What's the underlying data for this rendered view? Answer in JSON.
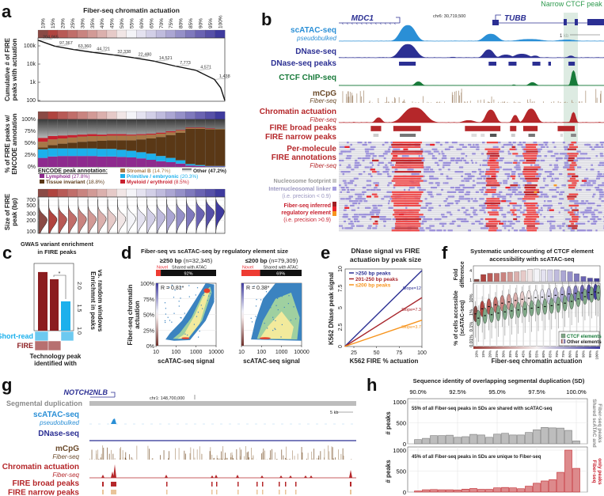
{
  "labels": {
    "a": "a",
    "b": "b",
    "c": "c",
    "d": "d",
    "e": "e",
    "f": "f",
    "g": "g",
    "h": "h"
  },
  "a": {
    "title": "Fiber-seq chromatin actuation",
    "ticks": [
      "10%",
      "15%",
      "20%",
      "25%",
      "30%",
      "35%",
      "40%",
      "45%",
      "50%",
      "55%",
      "60%",
      "65%",
      "70%",
      "75%",
      "80%",
      "85%",
      "90%",
      "95%",
      "100%"
    ],
    "strip_colors": [
      "#8a4a45",
      "#b0443f",
      "#b85a56",
      "#c16e6a",
      "#c98480",
      "#d29a96",
      "#dbb0ad",
      "#e6cac8",
      "#f1e6e6",
      "#f4f4f8",
      "#e4e2f0",
      "#d2cfe7",
      "#bfbbdd",
      "#aba6d3",
      "#9590c8",
      "#7f79bd",
      "#6a63b2",
      "#5650a8",
      "#3f3b9e"
    ],
    "cumulative": {
      "ylabel1": "Cumulative # of FIRE",
      "ylabel2": "peaks with actuation",
      "yticks": [
        "100k",
        "10k",
        "1k",
        "100"
      ],
      "points": [
        {
          "actuation": 10,
          "count": 204965,
          "label": "204,965"
        },
        {
          "actuation": 18,
          "count": 97367,
          "label": "97,367"
        },
        {
          "actuation": 27,
          "count": 63360,
          "label": "63,360"
        },
        {
          "actuation": 36,
          "count": 44721,
          "label": "44,721"
        },
        {
          "actuation": 46,
          "count": 32338,
          "label": "32,338"
        },
        {
          "actuation": 56,
          "count": 22480,
          "label": "22,480"
        },
        {
          "actuation": 66,
          "count": 14521,
          "label": "14,521"
        },
        {
          "actuation": 76,
          "count": 7773,
          "label": "7,773"
        },
        {
          "actuation": 86,
          "count": 4571,
          "label": "4,571"
        },
        {
          "actuation": 95,
          "count": 1438,
          "label": "1,438"
        },
        {
          "actuation": 98,
          "count": 500,
          "label": null
        },
        {
          "actuation": 100,
          "count": 100,
          "label": null
        }
      ]
    },
    "encode": {
      "ylabel1": "% of FIRE peaks w/",
      "ylabel2": "ENCODE annotation",
      "yticks": [
        "100%",
        "75%",
        "50%",
        "25%",
        "0%"
      ],
      "legend_title": "ENCODE peak annotation:",
      "categories": [
        {
          "name": "Lymphoid",
          "pct": "(27.8%)",
          "color": "#8e2a8e",
          "values": [
            19,
            22,
            23,
            23,
            23,
            23,
            22,
            22,
            21,
            20,
            18,
            15,
            12,
            10,
            7,
            3,
            2,
            1,
            1
          ]
        },
        {
          "name": "Primitive / embryonic",
          "pct": "(20.3%)",
          "color": "#1cb0ec",
          "values": [
            18,
            17,
            16,
            16,
            16,
            16,
            16,
            16,
            15,
            14,
            13,
            13,
            11,
            9,
            7,
            3,
            2,
            1,
            1
          ]
        },
        {
          "name": "Tissue invariant",
          "pct": "(18.8%)",
          "color": "#5a3816",
          "values": [
            4,
            7,
            10,
            12,
            14,
            15,
            17,
            18,
            20,
            22,
            27,
            32,
            40,
            48,
            58,
            74,
            76,
            77,
            77
          ]
        },
        {
          "name": "Stromal B",
          "pct": "(14.7%)",
          "color": "#a77847",
          "values": [
            12,
            12,
            11,
            11,
            11,
            11,
            10,
            10,
            10,
            10,
            9,
            8,
            7,
            6,
            5,
            2,
            2,
            1,
            1
          ]
        },
        {
          "name": "Myeloid / erythroid",
          "pct": "(8.5%)",
          "color": "#c8202e",
          "values": [
            8,
            7,
            6,
            5,
            4,
            4,
            3,
            3,
            3,
            2,
            2,
            2,
            2,
            2,
            1,
            1,
            1,
            1,
            0
          ]
        }
      ],
      "other": {
        "name": "Other",
        "pct": "(47.2%)"
      }
    },
    "size": {
      "ylabel1": "Size of FIRE",
      "ylabel2": "peak (bp)",
      "yticks": [
        "700",
        "500",
        "300",
        "200",
        "100"
      ],
      "mode_bp": [
        210,
        215,
        215,
        220,
        220,
        220,
        225,
        225,
        225,
        230,
        235,
        240,
        250,
        260,
        275,
        290,
        310,
        330,
        350
      ]
    }
  },
  "b": {
    "genes": {
      "left": "MDC1",
      "right": "TUBB"
    },
    "coordinate": "chr6: 30,719,500",
    "highlight": "Narrow CTCF peak",
    "scale": "1 kb",
    "tracks": {
      "scatac": "scATAC-seq",
      "scatac_sub": "pseudobulked",
      "dnase": "DNase-seq",
      "dnase_peaks": "DNase-seq peaks",
      "ctcf": "CTCF ChIP-seq",
      "mcpg": "mCpG",
      "mcpg_sub": "Fiber-seq",
      "actuation": "Chromatin actuation",
      "actuation_sub": "Fiber-seq",
      "broad": "FIRE broad peaks",
      "narrow": "FIRE narrow peaks",
      "molecule1": "Per-molecule",
      "molecule2": "FIRE annotations",
      "molecule_sub": "Fiber-seq"
    },
    "legend": {
      "nucleosome": "Nucleosome footprint",
      "linker": "Internucleosomal linker",
      "linker_note": "(i.e. precision < 0.9)",
      "fire1": "Fiber-seq inferred",
      "fire2": "regulatory element",
      "fire_note": "(i.e. precision >0.9)"
    }
  },
  "c": {
    "title1": "GWAS variant enrichment",
    "title2": "in FIRE peaks",
    "ylabel1": "Enrichmnt in peaks",
    "ylabel2": "vs. random windows",
    "yticks": [
      "2.0",
      "1.5",
      "1.0"
    ],
    "values": [
      2.3,
      2.14,
      1.65
    ],
    "significance": "*",
    "rows": [
      {
        "name": "Short-read",
        "cells": [
          true,
          false,
          true
        ]
      },
      {
        "name": "FIRE",
        "cells": [
          true,
          true,
          false
        ]
      }
    ],
    "xlabel1": "Technology peak",
    "xlabel2": "identified with"
  },
  "d": {
    "title": "Fiber-seq vs scATAC-seq by regulatory element size",
    "ylabel1": "Fiber-seq chromatin",
    "ylabel2": "actuation",
    "xlabel": "scATAC-seq signal",
    "yticks": [
      "100%",
      "75%",
      "50%",
      "25%",
      "0%"
    ],
    "xticks": [
      "10",
      "100",
      "1000",
      "10000"
    ],
    "novel": "Novel",
    "shared": "Shared with ATAC",
    "plots": [
      {
        "size": "≥250 bp",
        "n": "(n=32,345)",
        "shared_pct": "92%",
        "shared_fraction": 0.92,
        "r": "R = 0.81*"
      },
      {
        "size": "≤200 bp",
        "n": "(n=79,309)",
        "shared_pct": "69%",
        "shared_fraction": 0.69,
        "r": "R = 0.38*"
      }
    ]
  },
  "e": {
    "title1": "DNase signal vs FIRE",
    "title2": "actuation by peak size",
    "ylabel": "K562 DNase peak signal",
    "xlabel": "K562 FIRE % actuation",
    "yticks": [
      "0",
      "2.5",
      "5",
      "7.5",
      "10"
    ],
    "xticks": [
      "25",
      "50",
      "75",
      "100"
    ],
    "series": [
      {
        "name": ">250 bp peaks",
        "color": "#2b2f93",
        "slope_label": "Slope=12",
        "y_at_100": 9.8
      },
      {
        "name": "201-250 bp peaks",
        "color": "#a8262c",
        "slope_label": "Slope=7.3",
        "y_at_100": 6.3
      },
      {
        "name": "≤200 bp peaks",
        "color": "#f7941d",
        "slope_label": "Slope=3.7",
        "y_at_100": 3.4
      }
    ]
  },
  "f": {
    "title1": "Systematic undercounting of CTCF element",
    "title2": "accessibility with scATAC-seq",
    "fold_label1": "Fold",
    "fold_label2": "difference",
    "fold_ticks": [
      "4",
      "1"
    ],
    "fold_values": [
      0.6,
      1.8,
      2.1,
      2.1,
      2.3,
      2.4,
      2.5,
      2.8,
      3.1,
      3.2,
      3.0,
      3.0,
      3.0,
      2.8,
      2.5,
      2.0,
      1.3,
      0.9,
      0.8
    ],
    "ylabel1": "% of cells accessible",
    "ylabel2": "(scATAC-seq)",
    "yticks": [
      "10%",
      "1%",
      "0.1%",
      "0.01%"
    ],
    "xlabel": "Fiber-seq chromatin actuation",
    "legend": {
      "ctcf": "CTCF elements",
      "other": "Other elements"
    },
    "median_other_pct": [
      0.8,
      1.8,
      2.6,
      3.5,
      4.5,
      5.5,
      7,
      8.5,
      10,
      11,
      12,
      14,
      16,
      18,
      20,
      22,
      24,
      26,
      28
    ],
    "median_ctcf_pct": [
      0.4,
      0.6,
      0.7,
      0.9,
      1.1,
      1.3,
      1.5,
      1.7,
      2.0,
      2.3,
      2.6,
      3.0,
      3.5,
      4.5,
      6,
      9,
      13,
      18,
      24
    ]
  },
  "g": {
    "gene": "NOTCH2NLB",
    "coordinate": "chr1: 148,700,000",
    "scale": "5 kb",
    "tracks": {
      "segdup": "Segmental duplication",
      "scatac": "scATAC-seq",
      "scatac_sub": "pseudobulked",
      "dnase": "DNase-seq",
      "mcpg": "mCpG",
      "mcpg_sub": "Fiber-seq",
      "actuation": "Chromatin actuation",
      "actuation_sub": "Fiber-seq",
      "broad": "FIRE broad peaks",
      "narrow": "FIRE narrow peaks"
    }
  },
  "h": {
    "title": "Sequence identity of overlapping segmental duplication (SD)",
    "xticks": [
      "90.0%",
      "92.5%",
      "95.0%",
      "97.5%",
      "100.0%"
    ],
    "ylabel": "# peaks",
    "yticks": [
      "1000",
      "500",
      "0"
    ],
    "identity": [
      90.0,
      90.5,
      91.0,
      91.5,
      92.0,
      92.5,
      93.0,
      93.5,
      94.0,
      94.5,
      95.0,
      95.5,
      96.0,
      96.5,
      97.0,
      97.5,
      98.0,
      98.5,
      99.0,
      99.5,
      100.0
    ],
    "shared": {
      "note": "55% of all Fiber-seq peaks in SDs are shared with scATAC-seq",
      "side1": "Shared scATAC and",
      "side2": "Fiber-seq peaks",
      "values": [
        100,
        130,
        195,
        195,
        205,
        155,
        170,
        225,
        210,
        155,
        230,
        250,
        210,
        210,
        270,
        335,
        390,
        380,
        375,
        320,
        70
      ]
    },
    "unique": {
      "note": "45% of all Fiber-seq peaks in SDs are unique to Fiber-seq",
      "side1": "Fiber-seq",
      "side2": "only peaks",
      "values": [
        25,
        55,
        60,
        55,
        55,
        50,
        70,
        85,
        65,
        65,
        100,
        110,
        100,
        80,
        140,
        210,
        265,
        295,
        470,
        1000,
        565
      ]
    }
  }
}
